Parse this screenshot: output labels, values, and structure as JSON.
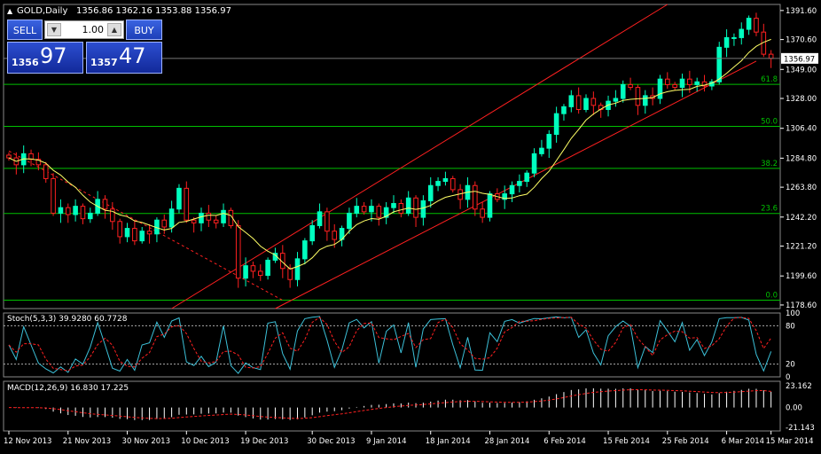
{
  "header": {
    "title": "GOLD,Daily",
    "ohlc": "1356.86 1362.16 1353.88 1356.97"
  },
  "trade_panel": {
    "sell_label": "SELL",
    "buy_label": "BUY",
    "lot": "1.00",
    "sell_price_small": "1356",
    "sell_price_big": "97",
    "buy_price_small": "1357",
    "buy_price_big": "47"
  },
  "colors": {
    "background": "#000000",
    "bull_candle": "#00ffbf",
    "bear_candle": "#ff2020",
    "moving_average": "#ffff66",
    "fibonacci": "#00c000",
    "channel": "#ff2020",
    "grid_text": "#ffffff"
  },
  "indicators": {
    "stoch_label": "Stoch(5,3,3) 39.9280 60.7728",
    "macd_label": "MACD(12,26,9) 16.830 17.225"
  },
  "chart_data": [
    {
      "type": "candlestick",
      "symbol": "GOLD",
      "timeframe": "Daily",
      "ylim": [
        1176,
        1396
      ],
      "yticks": [
        "1391.60",
        "1370.60",
        "1349.00",
        "1328.00",
        "1306.40",
        "1284.80",
        "1263.80",
        "1242.20",
        "1221.20",
        "1199.60",
        "1178.60"
      ],
      "current_price": "1356.97",
      "xticks": [
        "12 Nov 2013",
        "21 Nov 2013",
        "30 Nov 2013",
        "10 Dec 2013",
        "19 Dec 2013",
        "30 Dec 2013",
        "9 Jan 2014",
        "18 Jan 2014",
        "28 Jan 2014",
        "6 Feb 2014",
        "15 Feb 2014",
        "25 Feb 2014",
        "6 Mar 2014",
        "15 Mar 2014"
      ],
      "fibonacci_levels": [
        {
          "label": "61.8",
          "price": 1338.2
        },
        {
          "label": "50.0",
          "price": 1307.8
        },
        {
          "label": "38.2",
          "price": 1277.4
        },
        {
          "label": "23.6",
          "price": 1244.8
        },
        {
          "label": "0.0",
          "price": 1182.1
        }
      ],
      "closes": [
        1285,
        1280,
        1288,
        1284,
        1280,
        1270,
        1245,
        1249,
        1244,
        1250,
        1241,
        1245,
        1255,
        1248,
        1239,
        1228,
        1234,
        1225,
        1232,
        1230,
        1240,
        1235,
        1248,
        1263,
        1240,
        1238,
        1245,
        1240,
        1238,
        1247,
        1236,
        1198,
        1207,
        1203,
        1200,
        1211,
        1216,
        1205,
        1197,
        1212,
        1225,
        1236,
        1246,
        1232,
        1226,
        1234,
        1245,
        1250,
        1246,
        1250,
        1242,
        1249,
        1252,
        1245,
        1256,
        1242,
        1254,
        1265,
        1268,
        1270,
        1262,
        1255,
        1265,
        1248,
        1242,
        1259,
        1255,
        1259,
        1265,
        1268,
        1274,
        1288,
        1292,
        1302,
        1317,
        1322,
        1330,
        1320,
        1328,
        1323,
        1320,
        1326,
        1328,
        1338,
        1336,
        1323,
        1330,
        1328,
        1342,
        1338,
        1336,
        1342,
        1338,
        1340,
        1337,
        1340,
        1365,
        1372,
        1372,
        1378,
        1386,
        1376,
        1360,
        1357
      ]
    },
    {
      "type": "line",
      "name": "Stoch(5,3,3)",
      "ylim": [
        0,
        100
      ],
      "yticks": [
        "100",
        "80",
        "20",
        "0"
      ],
      "levels": [
        80,
        20
      ],
      "main_value": 39.928,
      "signal_value": 60.7728
    },
    {
      "type": "bar",
      "name": "MACD(12,26,9)",
      "ylim": [
        -25,
        28
      ],
      "yticks": [
        "23.162",
        "0.00",
        "-21.143"
      ],
      "main_value": 16.83,
      "signal_value": 17.225
    }
  ]
}
